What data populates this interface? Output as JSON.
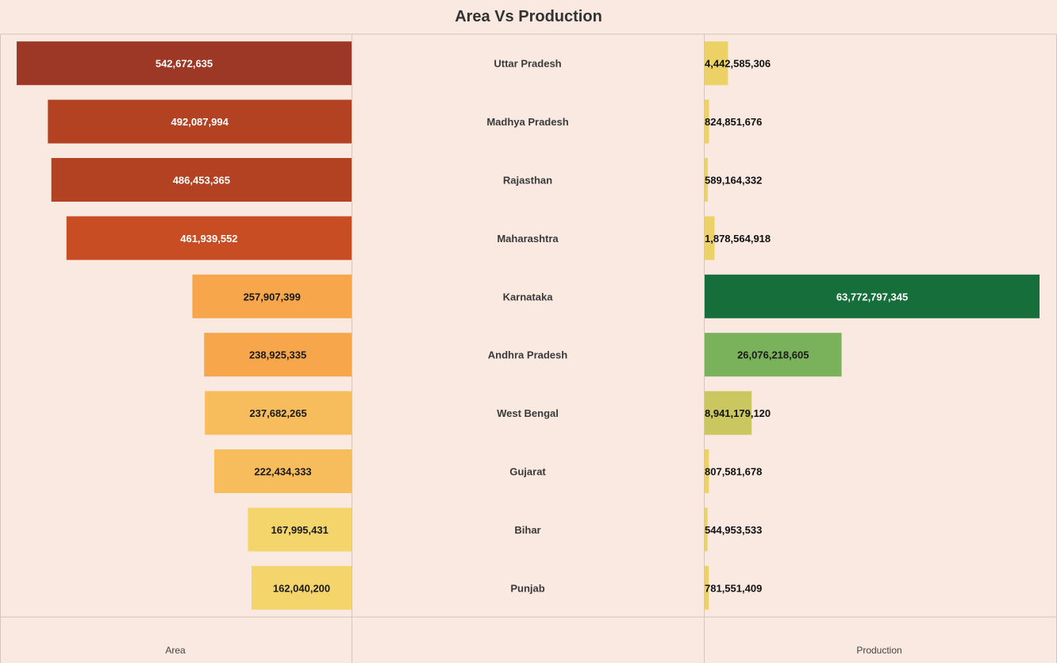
{
  "title": "Area Vs Production",
  "chart_data": {
    "type": "bar",
    "layout": "diverging butterfly (area bars extend left, production bars extend right)",
    "categories": [
      "Uttar Pradesh",
      "Madhya Pradesh",
      "Rajasthan",
      "Maharashtra",
      "Karnataka",
      "Andhra Pradesh",
      "West Bengal",
      "Gujarat",
      "Bihar",
      "Punjab"
    ],
    "series": [
      {
        "name": "Area",
        "values": [
          542672635,
          492087994,
          486453365,
          461939552,
          257907399,
          238925335,
          237682265,
          222434333,
          167995431,
          162040200
        ],
        "labels": [
          "542,672,635",
          "492,087,994",
          "486,453,365",
          "461,939,552",
          "257,907,399",
          "238,925,335",
          "237,682,265",
          "222,434,333",
          "167,995,431",
          "162,040,200"
        ],
        "colors": [
          "#9c3825",
          "#b24222",
          "#b24222",
          "#c84d23",
          "#f8a64b",
          "#f8a64b",
          "#f7bd5c",
          "#f7bd5c",
          "#f4d56c",
          "#f4d56c"
        ],
        "label_colors": [
          "#ffffff",
          "#ffffff",
          "#ffffff",
          "#ffffff",
          "#1a1a1a",
          "#1a1a1a",
          "#1a1a1a",
          "#1a1a1a",
          "#1a1a1a",
          "#1a1a1a"
        ]
      },
      {
        "name": "Production",
        "values": [
          4442585306,
          824851676,
          589164332,
          1878564918,
          63772797345,
          26076218605,
          8941179120,
          807581678,
          544953533,
          781551409
        ],
        "labels": [
          "4,442,585,306",
          "824,851,676",
          "589,164,332",
          "1,878,564,918",
          "63,772,797,345",
          "26,076,218,605",
          "8,941,179,120",
          "807,581,678",
          "544,953,533",
          "781,551,409"
        ],
        "colors": [
          "#ecd266",
          "#ecd266",
          "#ecd266",
          "#ecd266",
          "#166f3a",
          "#7ab25b",
          "#cbc760",
          "#ecd266",
          "#ecd266",
          "#ecd266"
        ],
        "label_colors": [
          "#111111",
          "#111111",
          "#111111",
          "#111111",
          "#ffffff",
          "#1a1a1a",
          "#111111",
          "#111111",
          "#111111",
          "#111111"
        ]
      }
    ],
    "xlabel_left": "Area",
    "xlabel_right": "Production",
    "area_xlim": [
      0,
      575000000
    ],
    "production_xlim": [
      0,
      63772797345
    ],
    "grid": false,
    "background": "#f9e9e1"
  }
}
